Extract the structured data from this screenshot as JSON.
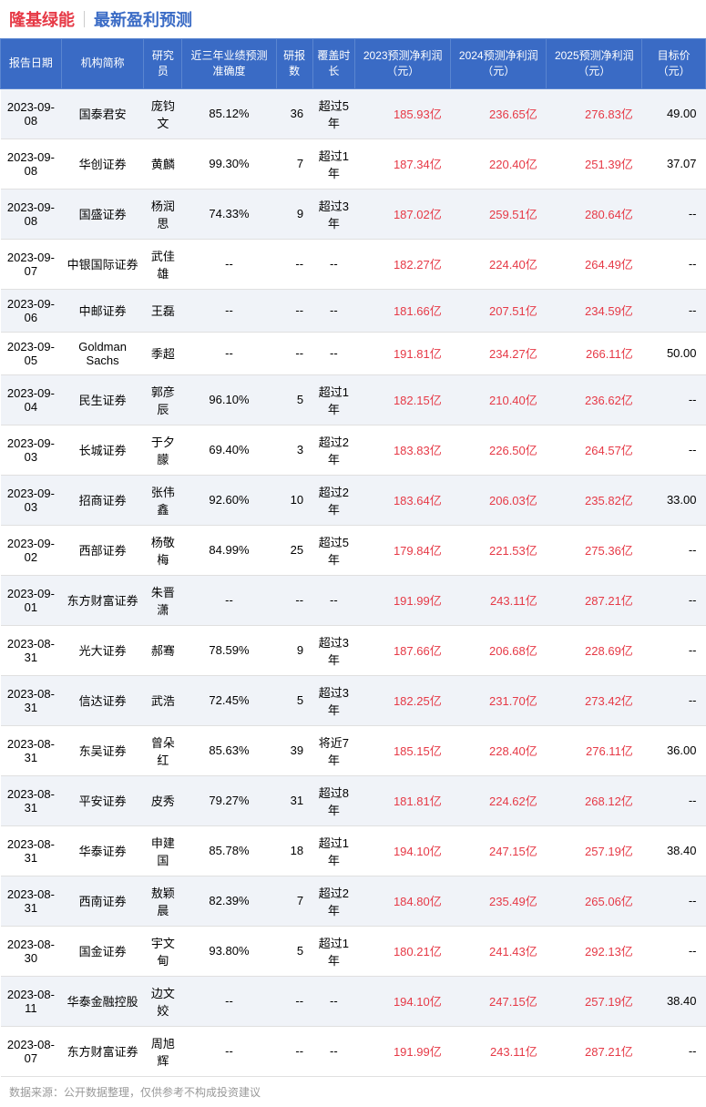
{
  "header": {
    "company": "隆基绿能",
    "company_color": "#e63946",
    "subtitle": "最新盈利预测",
    "subtitle_color": "#3a6bc5"
  },
  "columns": [
    "报告日期",
    "机构简称",
    "研究员",
    "近三年业绩预测准确度",
    "研报数",
    "覆盖时长",
    "2023预测净利润（元）",
    "2024预测净利润（元）",
    "2025预测净利润（元）",
    "目标价（元）"
  ],
  "rows": [
    [
      "2023-09-08",
      "国泰君安",
      "庞钧文",
      "85.12%",
      "36",
      "超过5年",
      "185.93亿",
      "236.65亿",
      "276.83亿",
      "49.00"
    ],
    [
      "2023-09-08",
      "华创证券",
      "黄麟",
      "99.30%",
      "7",
      "超过1年",
      "187.34亿",
      "220.40亿",
      "251.39亿",
      "37.07"
    ],
    [
      "2023-09-08",
      "国盛证券",
      "杨润思",
      "74.33%",
      "9",
      "超过3年",
      "187.02亿",
      "259.51亿",
      "280.64亿",
      "--"
    ],
    [
      "2023-09-07",
      "中银国际证券",
      "武佳雄",
      "--",
      "--",
      "--",
      "182.27亿",
      "224.40亿",
      "264.49亿",
      "--"
    ],
    [
      "2023-09-06",
      "中邮证券",
      "王磊",
      "--",
      "--",
      "--",
      "181.66亿",
      "207.51亿",
      "234.59亿",
      "--"
    ],
    [
      "2023-09-05",
      "Goldman Sachs",
      "季超",
      "--",
      "--",
      "--",
      "191.81亿",
      "234.27亿",
      "266.11亿",
      "50.00"
    ],
    [
      "2023-09-04",
      "民生证券",
      "郭彦辰",
      "96.10%",
      "5",
      "超过1年",
      "182.15亿",
      "210.40亿",
      "236.62亿",
      "--"
    ],
    [
      "2023-09-03",
      "长城证券",
      "于夕朦",
      "69.40%",
      "3",
      "超过2年",
      "183.83亿",
      "226.50亿",
      "264.57亿",
      "--"
    ],
    [
      "2023-09-03",
      "招商证券",
      "张伟鑫",
      "92.60%",
      "10",
      "超过2年",
      "183.64亿",
      "206.03亿",
      "235.82亿",
      "33.00"
    ],
    [
      "2023-09-02",
      "西部证券",
      "杨敬梅",
      "84.99%",
      "25",
      "超过5年",
      "179.84亿",
      "221.53亿",
      "275.36亿",
      "--"
    ],
    [
      "2023-09-01",
      "东方财富证券",
      "朱晋潇",
      "--",
      "--",
      "--",
      "191.99亿",
      "243.11亿",
      "287.21亿",
      "--"
    ],
    [
      "2023-08-31",
      "光大证券",
      "郝骞",
      "78.59%",
      "9",
      "超过3年",
      "187.66亿",
      "206.68亿",
      "228.69亿",
      "--"
    ],
    [
      "2023-08-31",
      "信达证券",
      "武浩",
      "72.45%",
      "5",
      "超过3年",
      "182.25亿",
      "231.70亿",
      "273.42亿",
      "--"
    ],
    [
      "2023-08-31",
      "东吴证券",
      "曾朵红",
      "85.63%",
      "39",
      "将近7年",
      "185.15亿",
      "228.40亿",
      "276.11亿",
      "36.00"
    ],
    [
      "2023-08-31",
      "平安证券",
      "皮秀",
      "79.27%",
      "31",
      "超过8年",
      "181.81亿",
      "224.62亿",
      "268.12亿",
      "--"
    ],
    [
      "2023-08-31",
      "华泰证券",
      "申建国",
      "85.78%",
      "18",
      "超过1年",
      "194.10亿",
      "247.15亿",
      "257.19亿",
      "38.40"
    ],
    [
      "2023-08-31",
      "西南证券",
      "敖颖晨",
      "82.39%",
      "7",
      "超过2年",
      "184.80亿",
      "235.49亿",
      "265.06亿",
      "--"
    ],
    [
      "2023-08-30",
      "国金证券",
      "宇文甸",
      "93.80%",
      "5",
      "超过1年",
      "180.21亿",
      "241.43亿",
      "292.13亿",
      "--"
    ],
    [
      "2023-08-11",
      "华泰金融控股",
      "边文姣",
      "--",
      "--",
      "--",
      "194.10亿",
      "247.15亿",
      "257.19亿",
      "38.40"
    ],
    [
      "2023-08-07",
      "东方财富证券",
      "周旭辉",
      "--",
      "--",
      "--",
      "191.99亿",
      "243.11亿",
      "287.21亿",
      "--"
    ]
  ],
  "footnote": "数据来源：公开数据整理，仅供参考不构成投资建议"
}
